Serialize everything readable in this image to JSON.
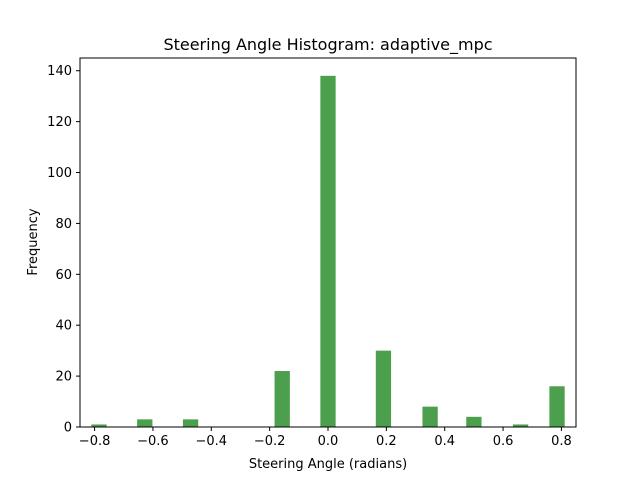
{
  "chart_data": {
    "type": "bar",
    "title": "Steering Angle Histogram: adaptive_mpc",
    "xlabel": "Steering Angle (radians)",
    "ylabel": "Frequency",
    "xlim": [
      -0.85,
      0.85
    ],
    "ylim": [
      0,
      145
    ],
    "xticks": [
      "−0.8",
      "−0.6",
      "−0.4",
      "−0.2",
      "0.0",
      "0.2",
      "0.4",
      "0.6",
      "0.8"
    ],
    "yticks": [
      "0",
      "20",
      "40",
      "60",
      "80",
      "100",
      "120",
      "140"
    ],
    "bin_width": 0.0524,
    "bar_color": "#4c9f4c",
    "grid": false,
    "legend": "none",
    "bins": [
      {
        "x": -0.785,
        "count": 1
      },
      {
        "x": -0.628,
        "count": 3
      },
      {
        "x": -0.471,
        "count": 3
      },
      {
        "x": -0.157,
        "count": 22
      },
      {
        "x": 0.0,
        "count": 138
      },
      {
        "x": 0.19,
        "count": 30
      },
      {
        "x": 0.35,
        "count": 8
      },
      {
        "x": 0.5,
        "count": 4
      },
      {
        "x": 0.66,
        "count": 1
      },
      {
        "x": 0.785,
        "count": 16
      }
    ]
  }
}
